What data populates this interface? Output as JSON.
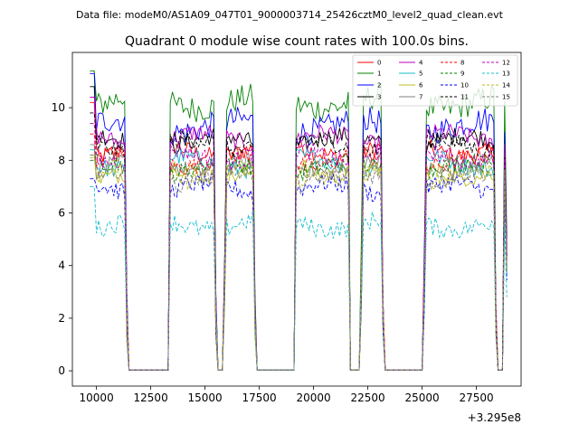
{
  "chart_data": {
    "type": "line",
    "suptitle": "Data file: modeM0/AS1A09_047T01_9000003714_25426cztM0_level2_quad_clean.evt",
    "title": "Quadrant 0 module wise count rates with 100.0s bins.",
    "xlabel": "",
    "ylabel": "",
    "x_offset_label": "+3.295e8",
    "xlim": [
      8890,
      29560
    ],
    "ylim": [
      -0.58,
      12.1
    ],
    "xticks": [
      10000,
      12500,
      15000,
      17500,
      20000,
      22500,
      25000,
      27500
    ],
    "xtick_labels": [
      "10000",
      "12500",
      "15000",
      "17500",
      "20000",
      "22500",
      "25000",
      "27500"
    ],
    "yticks": [
      0,
      2,
      4,
      6,
      8,
      10
    ],
    "ytick_labels": [
      "0",
      "2",
      "4",
      "6",
      "8",
      "10"
    ],
    "legend_position": "upper right",
    "active_segments": [
      [
        9700,
        11300
      ],
      [
        13400,
        15450
      ],
      [
        15950,
        17280
      ],
      [
        19200,
        21600
      ],
      [
        22250,
        23100
      ],
      [
        25150,
        28350
      ],
      [
        28800,
        28900
      ]
    ],
    "gap_segments": [
      [
        11500,
        13300
      ],
      [
        15600,
        15800
      ],
      [
        17380,
        19100
      ],
      [
        21700,
        22100
      ],
      [
        23250,
        25050
      ],
      [
        28450,
        28700
      ]
    ],
    "series": [
      {
        "name": "0",
        "color": "#ff0000",
        "dash": "solid",
        "level": 8.4,
        "start": 10.2
      },
      {
        "name": "1",
        "color": "#008000",
        "dash": "solid",
        "level": 10.2,
        "start": 11.4
      },
      {
        "name": "2",
        "color": "#0000ff",
        "dash": "solid",
        "level": 9.3,
        "start": 11.3
      },
      {
        "name": "3",
        "color": "#000000",
        "dash": "solid",
        "level": 8.7,
        "start": 10.8
      },
      {
        "name": "4",
        "color": "#bf00bf",
        "dash": "solid",
        "level": 8.8,
        "start": 10.4
      },
      {
        "name": "5",
        "color": "#17becf",
        "dash": "solid",
        "level": 7.9,
        "start": 8.4
      },
      {
        "name": "6",
        "color": "#bcbd22",
        "dash": "solid",
        "level": 7.6,
        "start": 8.2
      },
      {
        "name": "7",
        "color": "#7f7f7f",
        "dash": "solid",
        "level": 7.8,
        "start": 8.6
      },
      {
        "name": "8",
        "color": "#ff0000",
        "dash": "dashed",
        "level": 8.0,
        "start": 9.0
      },
      {
        "name": "9",
        "color": "#008000",
        "dash": "dashed",
        "level": 7.7,
        "start": 8.0
      },
      {
        "name": "10",
        "color": "#0000ff",
        "dash": "dashed",
        "level": 6.9,
        "start": 7.3
      },
      {
        "name": "11",
        "color": "#000000",
        "dash": "dashed",
        "level": 8.6,
        "start": 9.8
      },
      {
        "name": "12",
        "color": "#bf00bf",
        "dash": "dashed",
        "level": 8.2,
        "start": 9.4
      },
      {
        "name": "13",
        "color": "#17becf",
        "dash": "dashed",
        "level": 5.6,
        "start": 7.0
      },
      {
        "name": "14",
        "color": "#bcbd22",
        "dash": "dashed",
        "level": 7.5,
        "start": 8.1
      },
      {
        "name": "15",
        "color": "#7f7f7f",
        "dash": "dashed",
        "level": 7.3,
        "start": 8.2
      }
    ]
  }
}
